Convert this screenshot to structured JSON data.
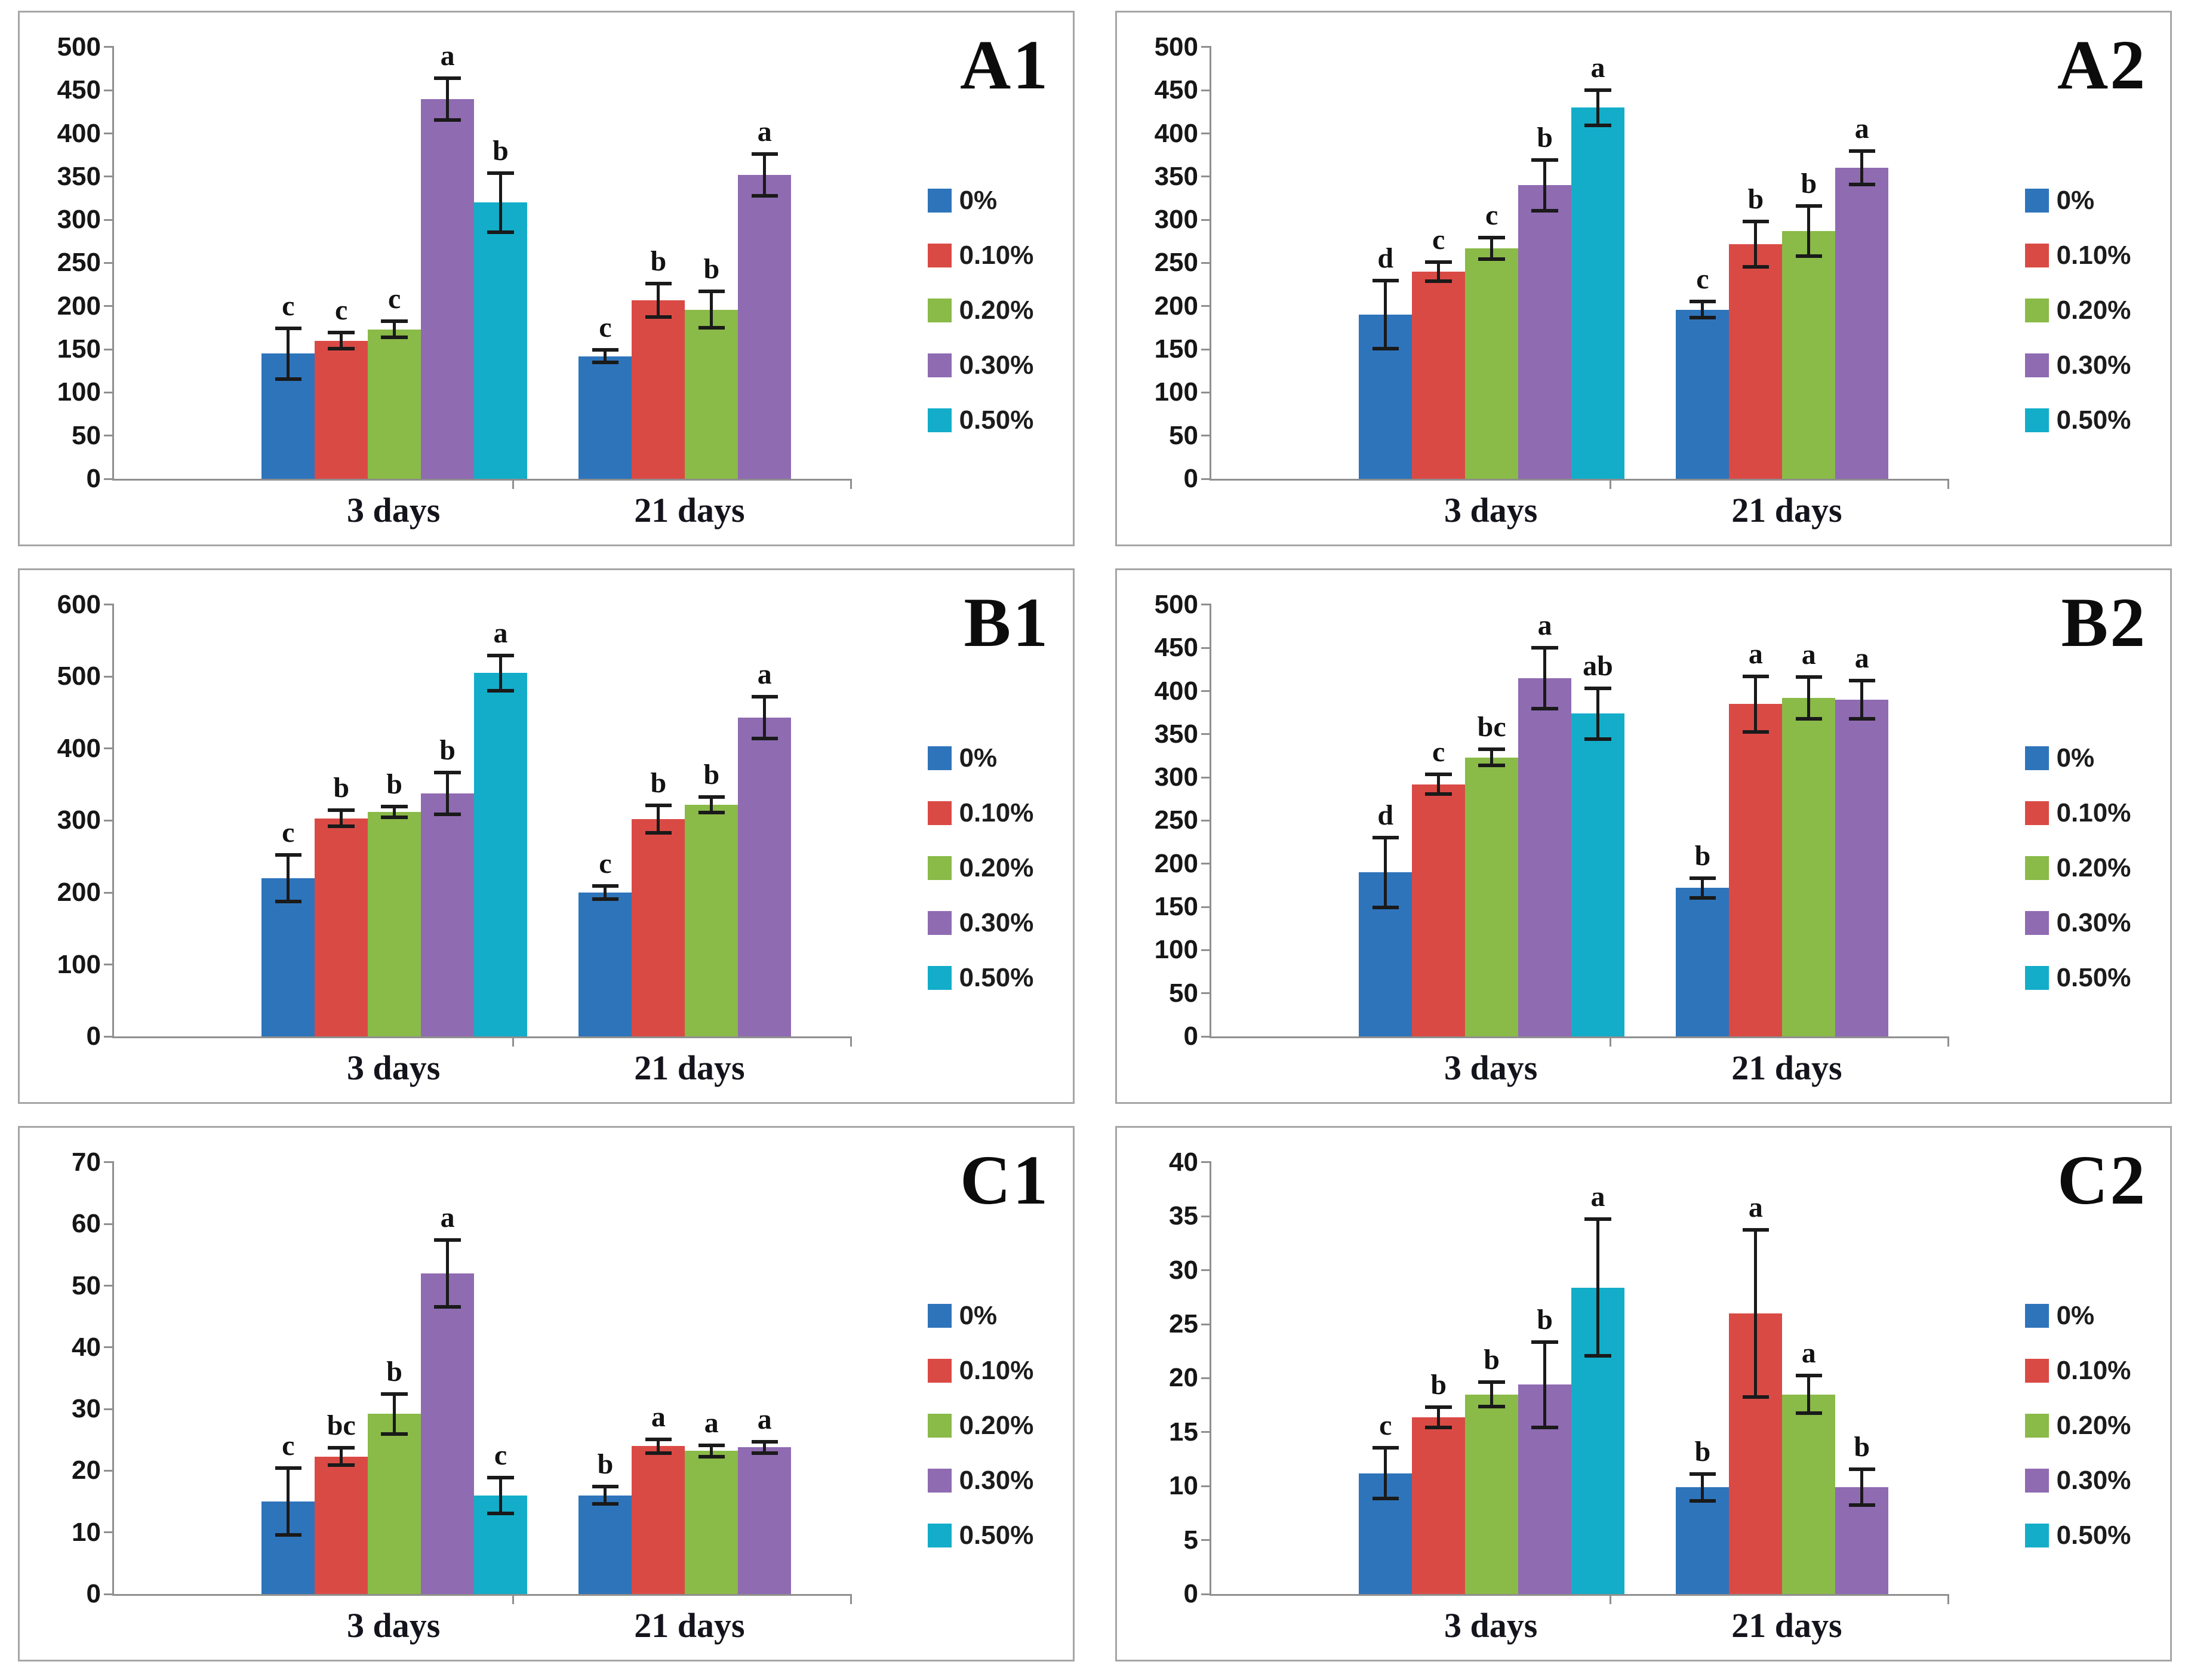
{
  "figure": {
    "background": "#ffffff",
    "panel_border_color": "#a6a6a6",
    "axis_color": "#8f8f8f",
    "text_color": "#161616"
  },
  "series_colors": [
    "#2e74bb",
    "#da4a45",
    "#8aba48",
    "#8f6bb2",
    "#13adc9"
  ],
  "chart_data": [
    {
      "id": "A1",
      "type": "bar",
      "title": "A1",
      "ylim": [
        0,
        500
      ],
      "ystep": 50,
      "yticks": [
        "0",
        "50",
        "100",
        "150",
        "200",
        "250",
        "300",
        "350",
        "400",
        "450",
        "500"
      ],
      "categories": [
        "3 days",
        "21 days"
      ],
      "grid": false,
      "legend_position": "right",
      "error_bars": true,
      "series": [
        {
          "name": "0%",
          "color": "#2e74bb",
          "values": [
            145,
            142
          ],
          "errors": [
            30,
            8
          ],
          "letters": [
            "c",
            "c"
          ]
        },
        {
          "name": "0.10%",
          "color": "#da4a45",
          "values": [
            160,
            207
          ],
          "errors": [
            10,
            20
          ],
          "letters": [
            "c",
            "b"
          ]
        },
        {
          "name": "0.20%",
          "color": "#8aba48",
          "values": [
            173,
            196
          ],
          "errors": [
            10,
            22
          ],
          "letters": [
            "c",
            "b"
          ]
        },
        {
          "name": "0.30%",
          "color": "#8f6bb2",
          "values": [
            440,
            352
          ],
          "errors": [
            25,
            25
          ],
          "letters": [
            "a",
            "a"
          ]
        },
        {
          "name": "0.50%",
          "color": "#13adc9",
          "values": [
            320,
            null
          ],
          "errors": [
            35,
            null
          ],
          "letters": [
            "b",
            null
          ]
        }
      ]
    },
    {
      "id": "A2",
      "type": "bar",
      "title": "A2",
      "ylim": [
        0,
        500
      ],
      "ystep": 50,
      "yticks": [
        "0",
        "50",
        "100",
        "150",
        "200",
        "250",
        "300",
        "350",
        "400",
        "450",
        "500"
      ],
      "categories": [
        "3 days",
        "21 days"
      ],
      "grid": false,
      "legend_position": "right",
      "error_bars": true,
      "series": [
        {
          "name": "0%",
          "color": "#2e74bb",
          "values": [
            190,
            196
          ],
          "errors": [
            40,
            10
          ],
          "letters": [
            "d",
            "c"
          ]
        },
        {
          "name": "0.10%",
          "color": "#da4a45",
          "values": [
            240,
            272
          ],
          "errors": [
            12,
            27
          ],
          "letters": [
            "c",
            "b"
          ]
        },
        {
          "name": "0.20%",
          "color": "#8aba48",
          "values": [
            267,
            287
          ],
          "errors": [
            13,
            30
          ],
          "letters": [
            "c",
            "b"
          ]
        },
        {
          "name": "0.30%",
          "color": "#8f6bb2",
          "values": [
            340,
            360
          ],
          "errors": [
            30,
            20
          ],
          "letters": [
            "b",
            "a"
          ]
        },
        {
          "name": "0.50%",
          "color": "#13adc9",
          "values": [
            430,
            null
          ],
          "errors": [
            21,
            null
          ],
          "letters": [
            "a",
            null
          ]
        }
      ]
    },
    {
      "id": "B1",
      "type": "bar",
      "title": "B1",
      "ylim": [
        0,
        600
      ],
      "ystep": 100,
      "yticks": [
        "0",
        "100",
        "200",
        "300",
        "400",
        "500",
        "600"
      ],
      "categories": [
        "3 days",
        "21 days"
      ],
      "grid": false,
      "legend_position": "right",
      "error_bars": true,
      "series": [
        {
          "name": "0%",
          "color": "#2e74bb",
          "values": [
            220,
            200
          ],
          "errors": [
            33,
            10
          ],
          "letters": [
            "c",
            "c"
          ]
        },
        {
          "name": "0.10%",
          "color": "#da4a45",
          "values": [
            303,
            302
          ],
          "errors": [
            12,
            20
          ],
          "letters": [
            "b",
            "b"
          ]
        },
        {
          "name": "0.20%",
          "color": "#8aba48",
          "values": [
            312,
            322
          ],
          "errors": [
            8,
            12
          ],
          "letters": [
            "b",
            "b"
          ]
        },
        {
          "name": "0.30%",
          "color": "#8f6bb2",
          "values": [
            338,
            443
          ],
          "errors": [
            30,
            30
          ],
          "letters": [
            "b",
            "a"
          ]
        },
        {
          "name": "0.50%",
          "color": "#13adc9",
          "values": [
            505,
            null
          ],
          "errors": [
            25,
            null
          ],
          "letters": [
            "a",
            null
          ]
        }
      ]
    },
    {
      "id": "B2",
      "type": "bar",
      "title": "B2",
      "ylim": [
        0,
        500
      ],
      "ystep": 50,
      "yticks": [
        "0",
        "50",
        "100",
        "150",
        "200",
        "250",
        "300",
        "350",
        "400",
        "450",
        "500"
      ],
      "categories": [
        "3 days",
        "21 days"
      ],
      "grid": false,
      "legend_position": "right",
      "error_bars": true,
      "series": [
        {
          "name": "0%",
          "color": "#2e74bb",
          "values": [
            190,
            172
          ],
          "errors": [
            41,
            12
          ],
          "letters": [
            "d",
            "b"
          ]
        },
        {
          "name": "0.10%",
          "color": "#da4a45",
          "values": [
            292,
            385
          ],
          "errors": [
            12,
            33
          ],
          "letters": [
            "c",
            "a"
          ]
        },
        {
          "name": "0.20%",
          "color": "#8aba48",
          "values": [
            323,
            392
          ],
          "errors": [
            10,
            25
          ],
          "letters": [
            "bc",
            "a"
          ]
        },
        {
          "name": "0.30%",
          "color": "#8f6bb2",
          "values": [
            415,
            390
          ],
          "errors": [
            36,
            23
          ],
          "letters": [
            "a",
            "a"
          ]
        },
        {
          "name": "0.50%",
          "color": "#13adc9",
          "values": [
            374,
            null
          ],
          "errors": [
            30,
            null
          ],
          "letters": [
            "ab",
            null
          ]
        }
      ]
    },
    {
      "id": "C1",
      "type": "bar",
      "title": "C1",
      "ylim": [
        0,
        70
      ],
      "ystep": 10,
      "yticks": [
        "0",
        "10",
        "20",
        "30",
        "40",
        "50",
        "60",
        "70"
      ],
      "categories": [
        "3 days",
        "21 days"
      ],
      "grid": false,
      "legend_position": "right",
      "error_bars": true,
      "series": [
        {
          "name": "0%",
          "color": "#2e74bb",
          "values": [
            15,
            16
          ],
          "errors": [
            5.5,
            1.5
          ],
          "letters": [
            "c",
            "b"
          ]
        },
        {
          "name": "0.10%",
          "color": "#da4a45",
          "values": [
            22.3,
            24
          ],
          "errors": [
            1.5,
            1.2
          ],
          "letters": [
            "bc",
            "a"
          ]
        },
        {
          "name": "0.20%",
          "color": "#8aba48",
          "values": [
            29.2,
            23.2
          ],
          "errors": [
            3.3,
            1
          ],
          "letters": [
            "b",
            "a"
          ]
        },
        {
          "name": "0.30%",
          "color": "#8f6bb2",
          "values": [
            52,
            23.8
          ],
          "errors": [
            5.5,
            1
          ],
          "letters": [
            "a",
            "a"
          ]
        },
        {
          "name": "0.50%",
          "color": "#13adc9",
          "values": [
            16,
            null
          ],
          "errors": [
            3,
            null
          ],
          "letters": [
            "c",
            null
          ]
        }
      ]
    },
    {
      "id": "C2",
      "type": "bar",
      "title": "C2",
      "ylim": [
        0,
        40
      ],
      "ystep": 5,
      "yticks": [
        "0",
        "5",
        "10",
        "15",
        "20",
        "25",
        "30",
        "35",
        "40"
      ],
      "categories": [
        "3 days",
        "21 days"
      ],
      "grid": false,
      "legend_position": "right",
      "error_bars": true,
      "series": [
        {
          "name": "0%",
          "color": "#2e74bb",
          "values": [
            11.2,
            9.9
          ],
          "errors": [
            2.4,
            1.3
          ],
          "letters": [
            "c",
            "b"
          ]
        },
        {
          "name": "0.10%",
          "color": "#da4a45",
          "values": [
            16.4,
            26
          ],
          "errors": [
            1,
            7.8
          ],
          "letters": [
            "b",
            "a"
          ]
        },
        {
          "name": "0.20%",
          "color": "#8aba48",
          "values": [
            18.5,
            18.5
          ],
          "errors": [
            1.2,
            1.8
          ],
          "letters": [
            "b",
            "a"
          ]
        },
        {
          "name": "0.30%",
          "color": "#8f6bb2",
          "values": [
            19.4,
            9.9
          ],
          "errors": [
            4,
            1.7
          ],
          "letters": [
            "b",
            "b"
          ]
        },
        {
          "name": "0.50%",
          "color": "#13adc9",
          "values": [
            28.4,
            null
          ],
          "errors": [
            6.4,
            null
          ],
          "letters": [
            "a",
            null
          ]
        }
      ]
    }
  ]
}
